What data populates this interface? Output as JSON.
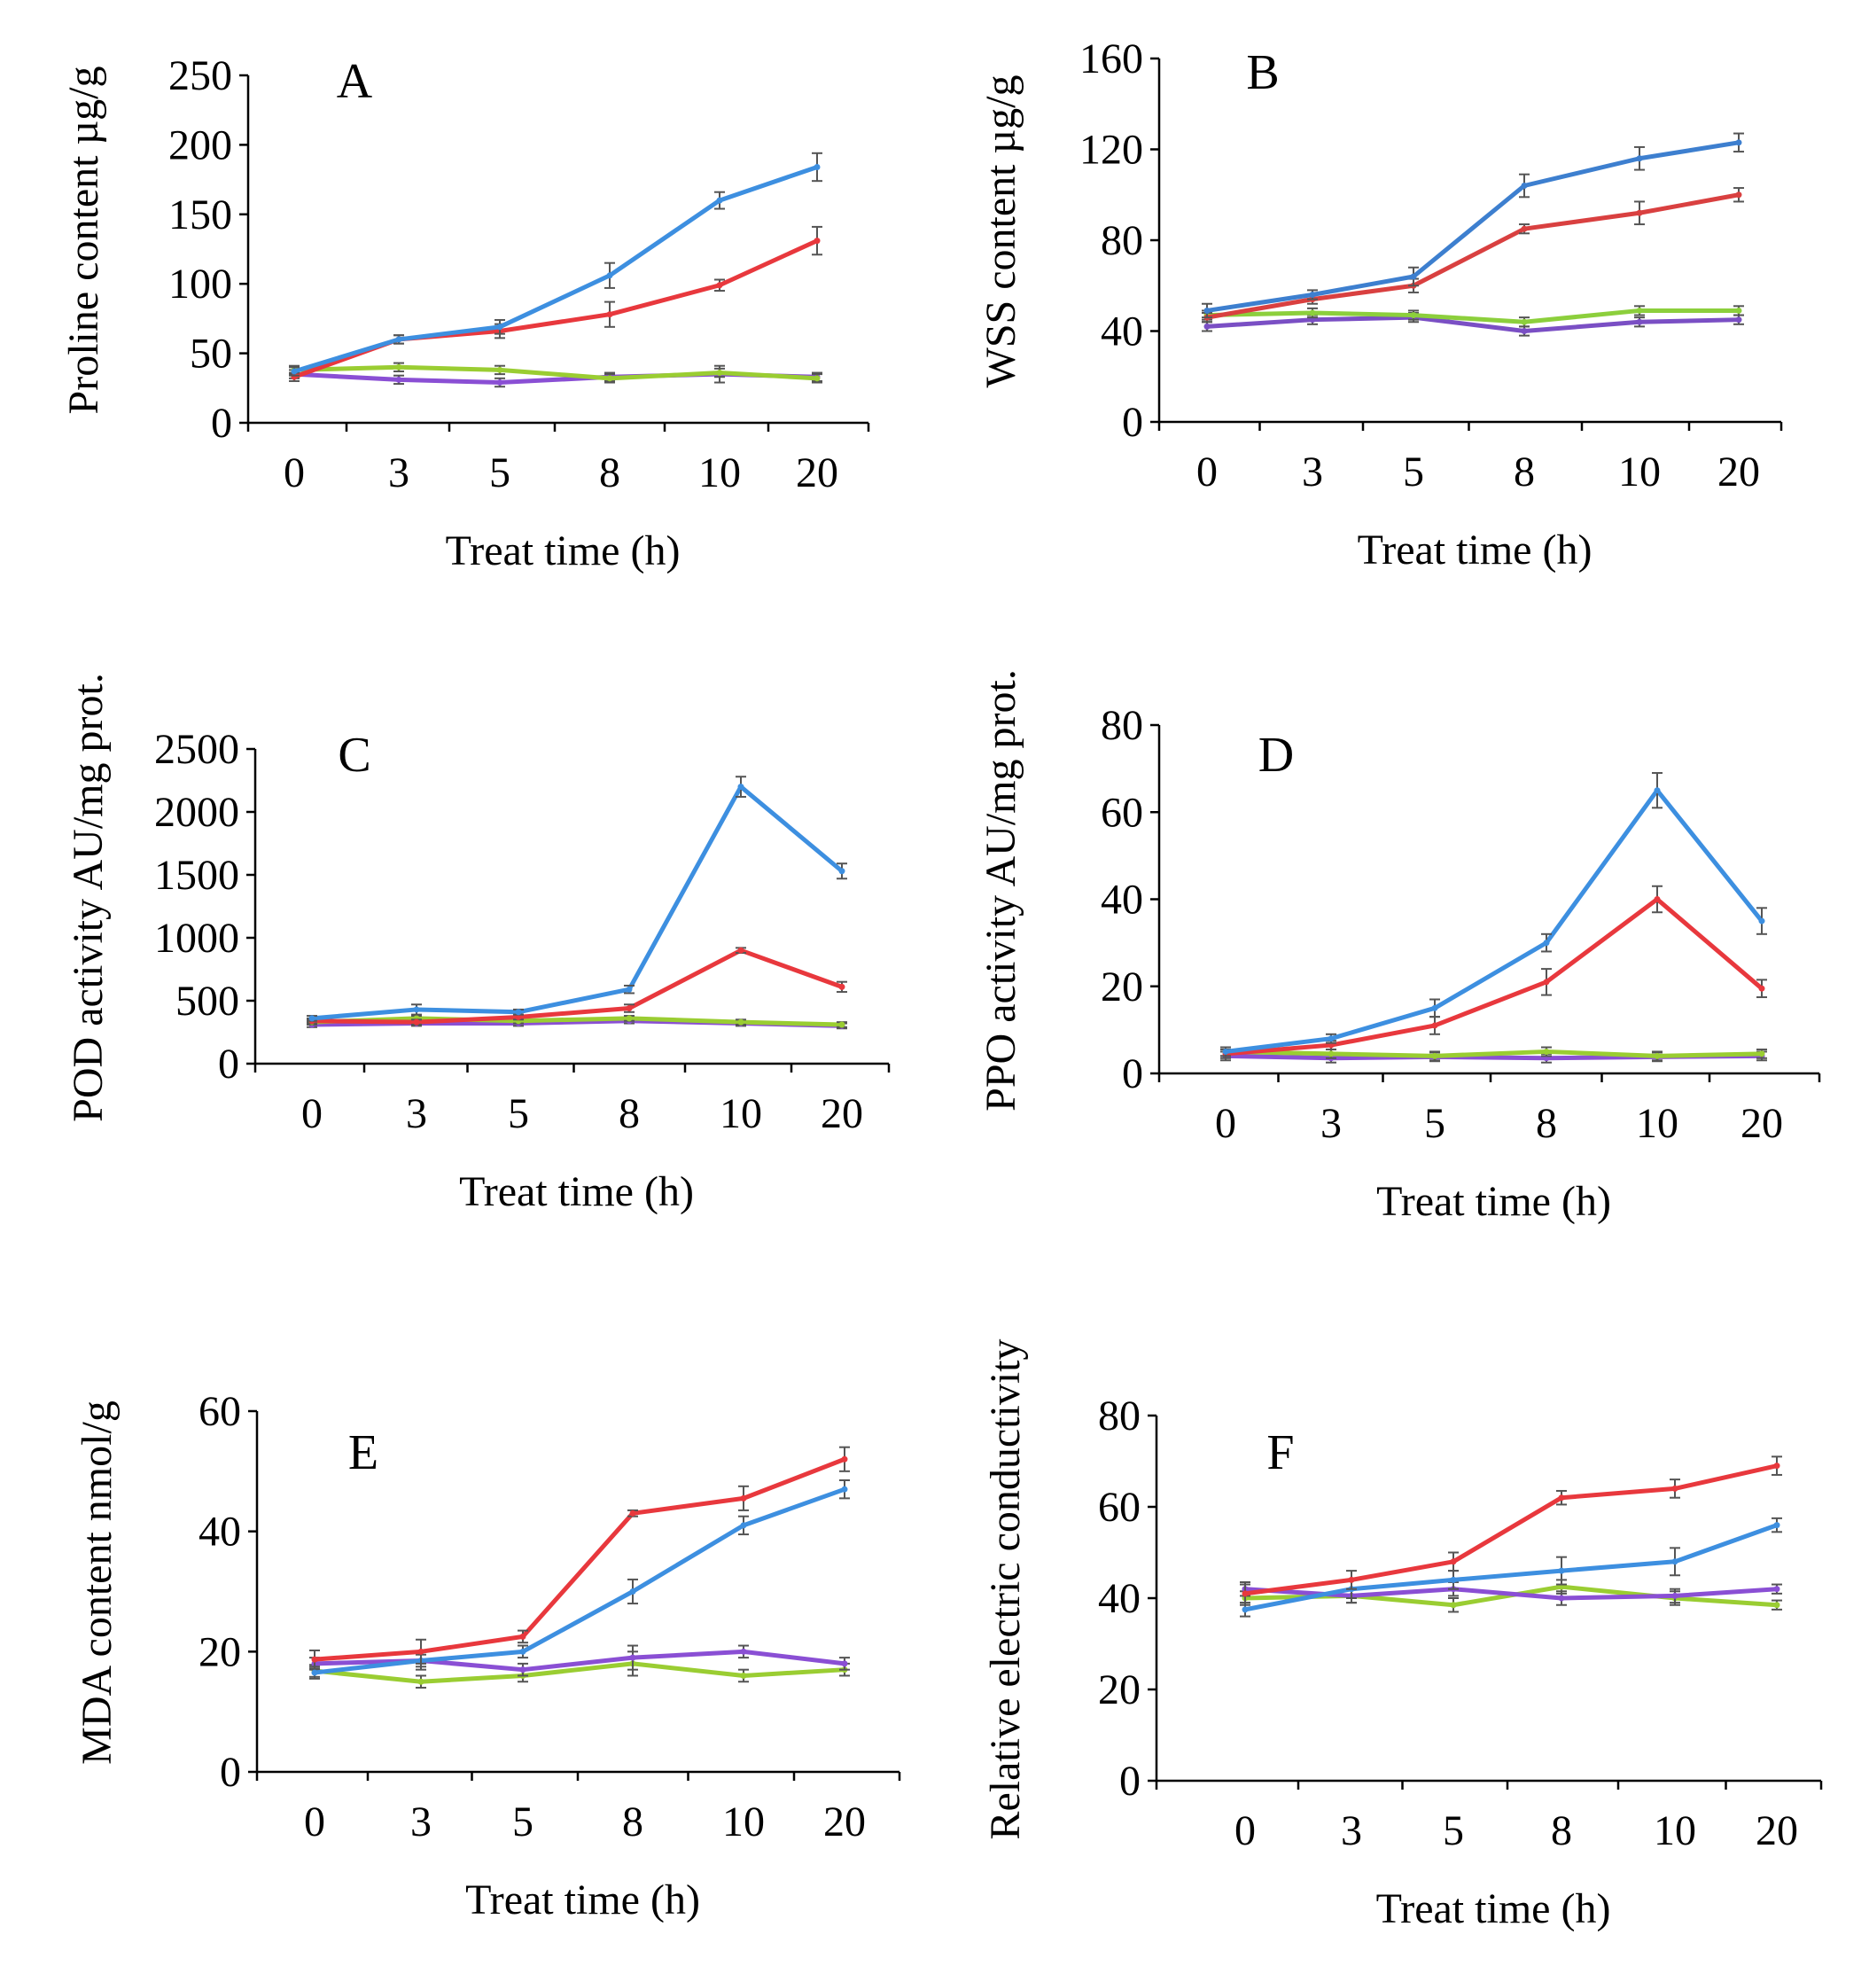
{
  "figure": {
    "panels": [
      "A",
      "B",
      "C",
      "D",
      "E",
      "F"
    ]
  },
  "chart_data": [
    {
      "type": "line",
      "panel": "A",
      "xlabel": "Treat time (h)",
      "ylabel": "Proline content µg/g",
      "categories": [
        "0",
        "3",
        "5",
        "8",
        "10",
        "20"
      ],
      "ylim": [
        0,
        250
      ],
      "yticks": [
        "0",
        "50",
        "100",
        "150",
        "200",
        "250"
      ],
      "series": [
        {
          "name": "blue",
          "color": "#3d8fe0",
          "values": [
            37,
            60,
            69,
            106,
            160,
            184
          ],
          "errors": [
            3,
            3,
            5,
            9,
            6,
            10
          ]
        },
        {
          "name": "red",
          "color": "#e8383d",
          "values": [
            33,
            60,
            66,
            78,
            99,
            131
          ],
          "errors": [
            3,
            3,
            5,
            9,
            4,
            10
          ]
        },
        {
          "name": "green",
          "color": "#9acd32",
          "values": [
            38,
            40,
            38,
            32,
            36,
            32
          ],
          "errors": [
            3,
            3,
            3,
            3,
            3,
            3
          ]
        },
        {
          "name": "purple",
          "color": "#8a4fd4",
          "values": [
            35,
            31,
            29,
            33,
            35,
            33
          ],
          "errors": [
            3,
            3,
            3,
            3,
            6,
            3
          ]
        }
      ]
    },
    {
      "type": "line",
      "panel": "B",
      "xlabel": "Treat time (h)",
      "ylabel": "WSS content µg/g",
      "categories": [
        "0",
        "3",
        "5",
        "8",
        "10",
        "20"
      ],
      "ylim": [
        0,
        160
      ],
      "yticks": [
        "0",
        "40",
        "80",
        "120",
        "160"
      ],
      "series": [
        {
          "name": "blue",
          "color": "#3d7fcf",
          "values": [
            49,
            56,
            64,
            104,
            116,
            123
          ],
          "errors": [
            3,
            2,
            4,
            5,
            5,
            4
          ]
        },
        {
          "name": "red",
          "color": "#d94040",
          "values": [
            46,
            54,
            60,
            85,
            92,
            100
          ],
          "errors": [
            2,
            2,
            3,
            2,
            5,
            3
          ]
        },
        {
          "name": "green",
          "color": "#8ccf3c",
          "values": [
            47,
            48,
            47,
            44,
            49,
            49
          ],
          "errors": [
            2,
            2,
            2,
            2,
            2,
            2
          ]
        },
        {
          "name": "purple",
          "color": "#7a4fc4",
          "values": [
            42,
            45,
            46,
            40,
            44,
            45
          ],
          "errors": [
            2,
            2,
            2,
            2,
            2,
            2
          ]
        }
      ]
    },
    {
      "type": "line",
      "panel": "C",
      "xlabel": "Treat time (h)",
      "ylabel": "POD activity AU/mg prot.",
      "categories": [
        "0",
        "3",
        "5",
        "8",
        "10",
        "20"
      ],
      "ylim": [
        0,
        2500
      ],
      "yticks": [
        "0",
        "500",
        "1000",
        "1500",
        "2000",
        "2500"
      ],
      "series": [
        {
          "name": "blue",
          "color": "#3d8fe0",
          "values": [
            360,
            430,
            410,
            590,
            2200,
            1530
          ],
          "errors": [
            20,
            40,
            20,
            30,
            80,
            60
          ]
        },
        {
          "name": "red",
          "color": "#e8383d",
          "values": [
            340,
            330,
            370,
            440,
            900,
            610
          ],
          "errors": [
            20,
            20,
            20,
            30,
            20,
            40
          ]
        },
        {
          "name": "green",
          "color": "#9acd32",
          "values": [
            330,
            360,
            340,
            360,
            330,
            310
          ],
          "errors": [
            20,
            20,
            20,
            20,
            20,
            20
          ]
        },
        {
          "name": "purple",
          "color": "#8a4fd4",
          "values": [
            310,
            320,
            320,
            340,
            320,
            300
          ],
          "errors": [
            20,
            20,
            20,
            20,
            20,
            20
          ]
        }
      ]
    },
    {
      "type": "line",
      "panel": "D",
      "xlabel": "Treat time (h)",
      "ylabel": "PPO activity AU/mg prot.",
      "categories": [
        "0",
        "3",
        "5",
        "8",
        "10",
        "20"
      ],
      "ylim": [
        0,
        80
      ],
      "yticks": [
        "0",
        "20",
        "40",
        "60",
        "80"
      ],
      "series": [
        {
          "name": "blue",
          "color": "#3d8fe0",
          "values": [
            5,
            8,
            15,
            30,
            65,
            35
          ],
          "errors": [
            1,
            1,
            2,
            2,
            4,
            3
          ]
        },
        {
          "name": "red",
          "color": "#e8383d",
          "values": [
            4.5,
            6.5,
            11,
            21,
            40,
            19.5
          ],
          "errors": [
            1,
            1,
            2,
            3,
            3,
            2
          ]
        },
        {
          "name": "green",
          "color": "#9acd32",
          "values": [
            5,
            4.5,
            4,
            5,
            4,
            4.5
          ],
          "errors": [
            1,
            1,
            1,
            1,
            1,
            1
          ]
        },
        {
          "name": "purple",
          "color": "#8a4fd4",
          "values": [
            4,
            3.5,
            3.8,
            3.5,
            3.8,
            4
          ],
          "errors": [
            1,
            1,
            1,
            1,
            1,
            1
          ]
        }
      ]
    },
    {
      "type": "line",
      "panel": "E",
      "xlabel": "Treat time (h)",
      "ylabel": "MDA content nmol/g",
      "categories": [
        "0",
        "3",
        "5",
        "8",
        "10",
        "20"
      ],
      "ylim": [
        0,
        60
      ],
      "yticks": [
        "0",
        "20",
        "40",
        "60"
      ],
      "series": [
        {
          "name": "red",
          "color": "#e8383d",
          "values": [
            18.7,
            20,
            22.5,
            43,
            45.5,
            52
          ],
          "errors": [
            1.5,
            2,
            1,
            0.5,
            2,
            2
          ]
        },
        {
          "name": "blue",
          "color": "#3d8fe0",
          "values": [
            16.5,
            18.5,
            20,
            30,
            41,
            47
          ],
          "errors": [
            1,
            1.5,
            1,
            2,
            1.5,
            1.5
          ]
        },
        {
          "name": "purple",
          "color": "#8a4fd4",
          "values": [
            18,
            18.5,
            17,
            19,
            20,
            18
          ],
          "errors": [
            1,
            1,
            1,
            2,
            1,
            1
          ]
        },
        {
          "name": "green",
          "color": "#9acd32",
          "values": [
            16.8,
            15,
            16,
            18,
            16,
            17
          ],
          "errors": [
            1,
            1,
            1,
            2,
            1,
            1
          ]
        }
      ]
    },
    {
      "type": "line",
      "panel": "F",
      "xlabel": "Treat time (h)",
      "ylabel": "Relative electric conductivity",
      "categories": [
        "0",
        "3",
        "5",
        "8",
        "10",
        "20"
      ],
      "ylim": [
        0,
        80
      ],
      "yticks": [
        "0",
        "20",
        "40",
        "60",
        "80"
      ],
      "series": [
        {
          "name": "red",
          "color": "#e8383d",
          "values": [
            41,
            44,
            48,
            62,
            64,
            69
          ],
          "errors": [
            2,
            2,
            2,
            1.5,
            2,
            2
          ]
        },
        {
          "name": "blue",
          "color": "#3d8fe0",
          "values": [
            37.5,
            42,
            44,
            46,
            48,
            56
          ],
          "errors": [
            1.5,
            2,
            2,
            3,
            3,
            1.5
          ]
        },
        {
          "name": "purple",
          "color": "#8a4fd4",
          "values": [
            42,
            40.5,
            42,
            40,
            40.5,
            42
          ],
          "errors": [
            1.5,
            1.5,
            1.5,
            1.5,
            1.5,
            1
          ]
        },
        {
          "name": "green",
          "color": "#9acd32",
          "values": [
            40,
            40.5,
            38.5,
            42.5,
            40,
            38.5
          ],
          "errors": [
            1.5,
            1.5,
            1.5,
            1.5,
            1.5,
            1
          ]
        }
      ]
    }
  ]
}
